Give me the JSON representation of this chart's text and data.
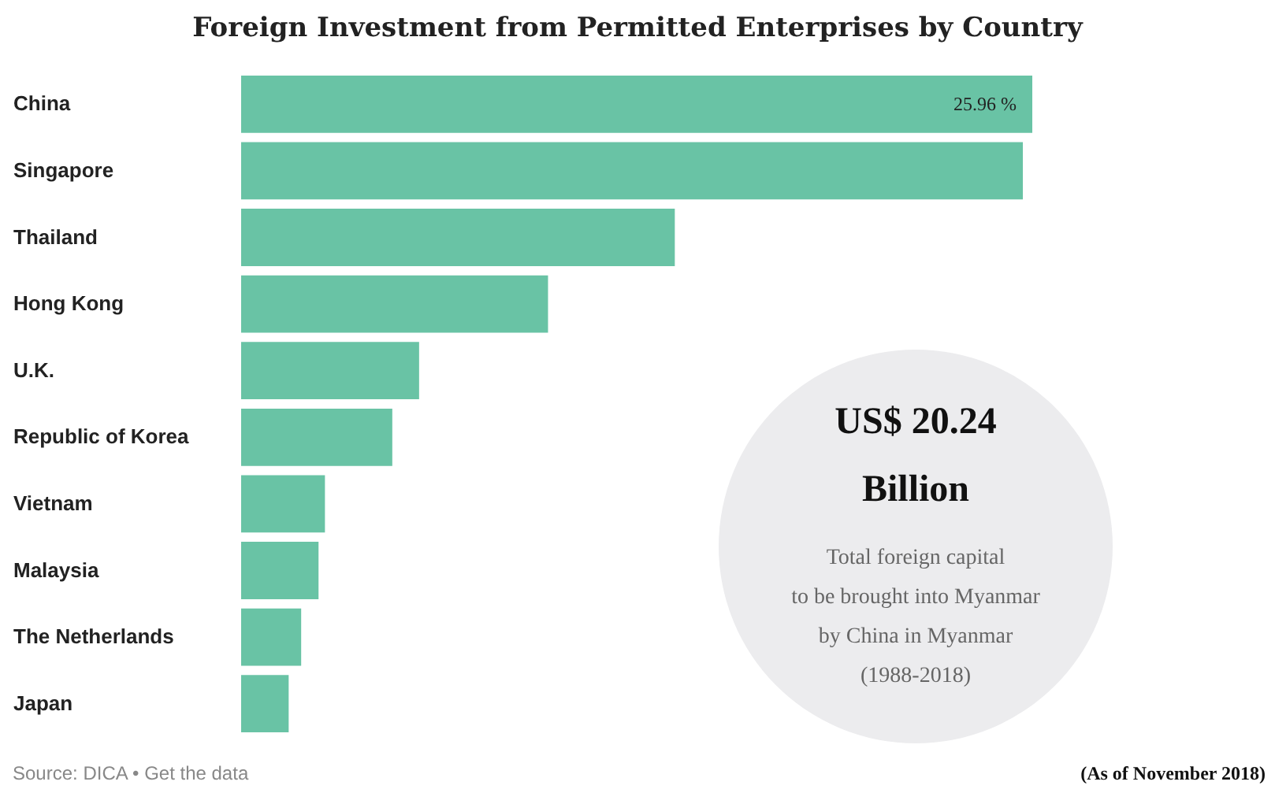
{
  "chart_data": {
    "type": "bar",
    "orientation": "horizontal",
    "title": "Foreign Investment from Permitted Enterprises by Country",
    "categories": [
      "China",
      "Singapore",
      "Thailand",
      "Hong Kong",
      "U.K.",
      "Republic of Korea",
      "Vietnam",
      "Malaysia",
      "The Netherlands",
      "Japan"
    ],
    "values": [
      25.96,
      25.65,
      14.23,
      10.07,
      5.84,
      4.96,
      2.75,
      2.54,
      1.97,
      1.56
    ],
    "value_labels": [
      "25.96 %",
      null,
      null,
      null,
      null,
      null,
      null,
      null,
      null,
      null
    ],
    "color": "#69c3a5",
    "annotations": [
      "US$ 20.24",
      "Billion",
      "Total foreign capital",
      "to be brought into Myanmar",
      "by China in Myanmar",
      "(1988-2018)",
      "Source: DICA • Get the data",
      "(As of November 2018)"
    ]
  }
}
